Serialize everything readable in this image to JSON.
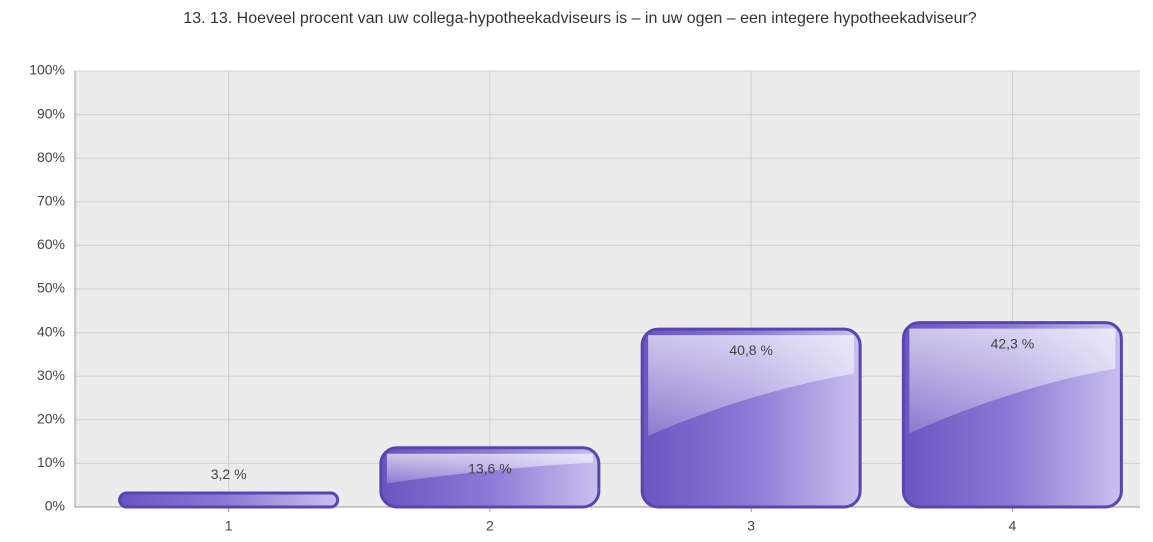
{
  "chart_data": {
    "type": "bar",
    "title": "13. 13. Hoeveel procent van uw collega-hypotheekadviseurs is – in uw ogen – een integere hypotheekadviseur?",
    "categories": [
      "1",
      "2",
      "3",
      "4"
    ],
    "values": [
      3.2,
      13.6,
      40.8,
      42.3
    ],
    "value_labels": [
      "3,2 %",
      "13,6 %",
      "40,8 %",
      "42,3 %"
    ],
    "color": "#7a68c8",
    "ylim": [
      0,
      100
    ],
    "yticks": [
      {
        "value": 0,
        "label": "0%"
      },
      {
        "value": 10,
        "label": "10%"
      },
      {
        "value": 20,
        "label": "20%"
      },
      {
        "value": 30,
        "label": "30%"
      },
      {
        "value": 40,
        "label": "40%"
      },
      {
        "value": 50,
        "label": "50%"
      },
      {
        "value": 60,
        "label": "60%"
      },
      {
        "value": 70,
        "label": "70%"
      },
      {
        "value": 80,
        "label": "80%"
      },
      {
        "value": 90,
        "label": "90%"
      },
      {
        "value": 100,
        "label": "100%"
      }
    ],
    "grid": true
  }
}
